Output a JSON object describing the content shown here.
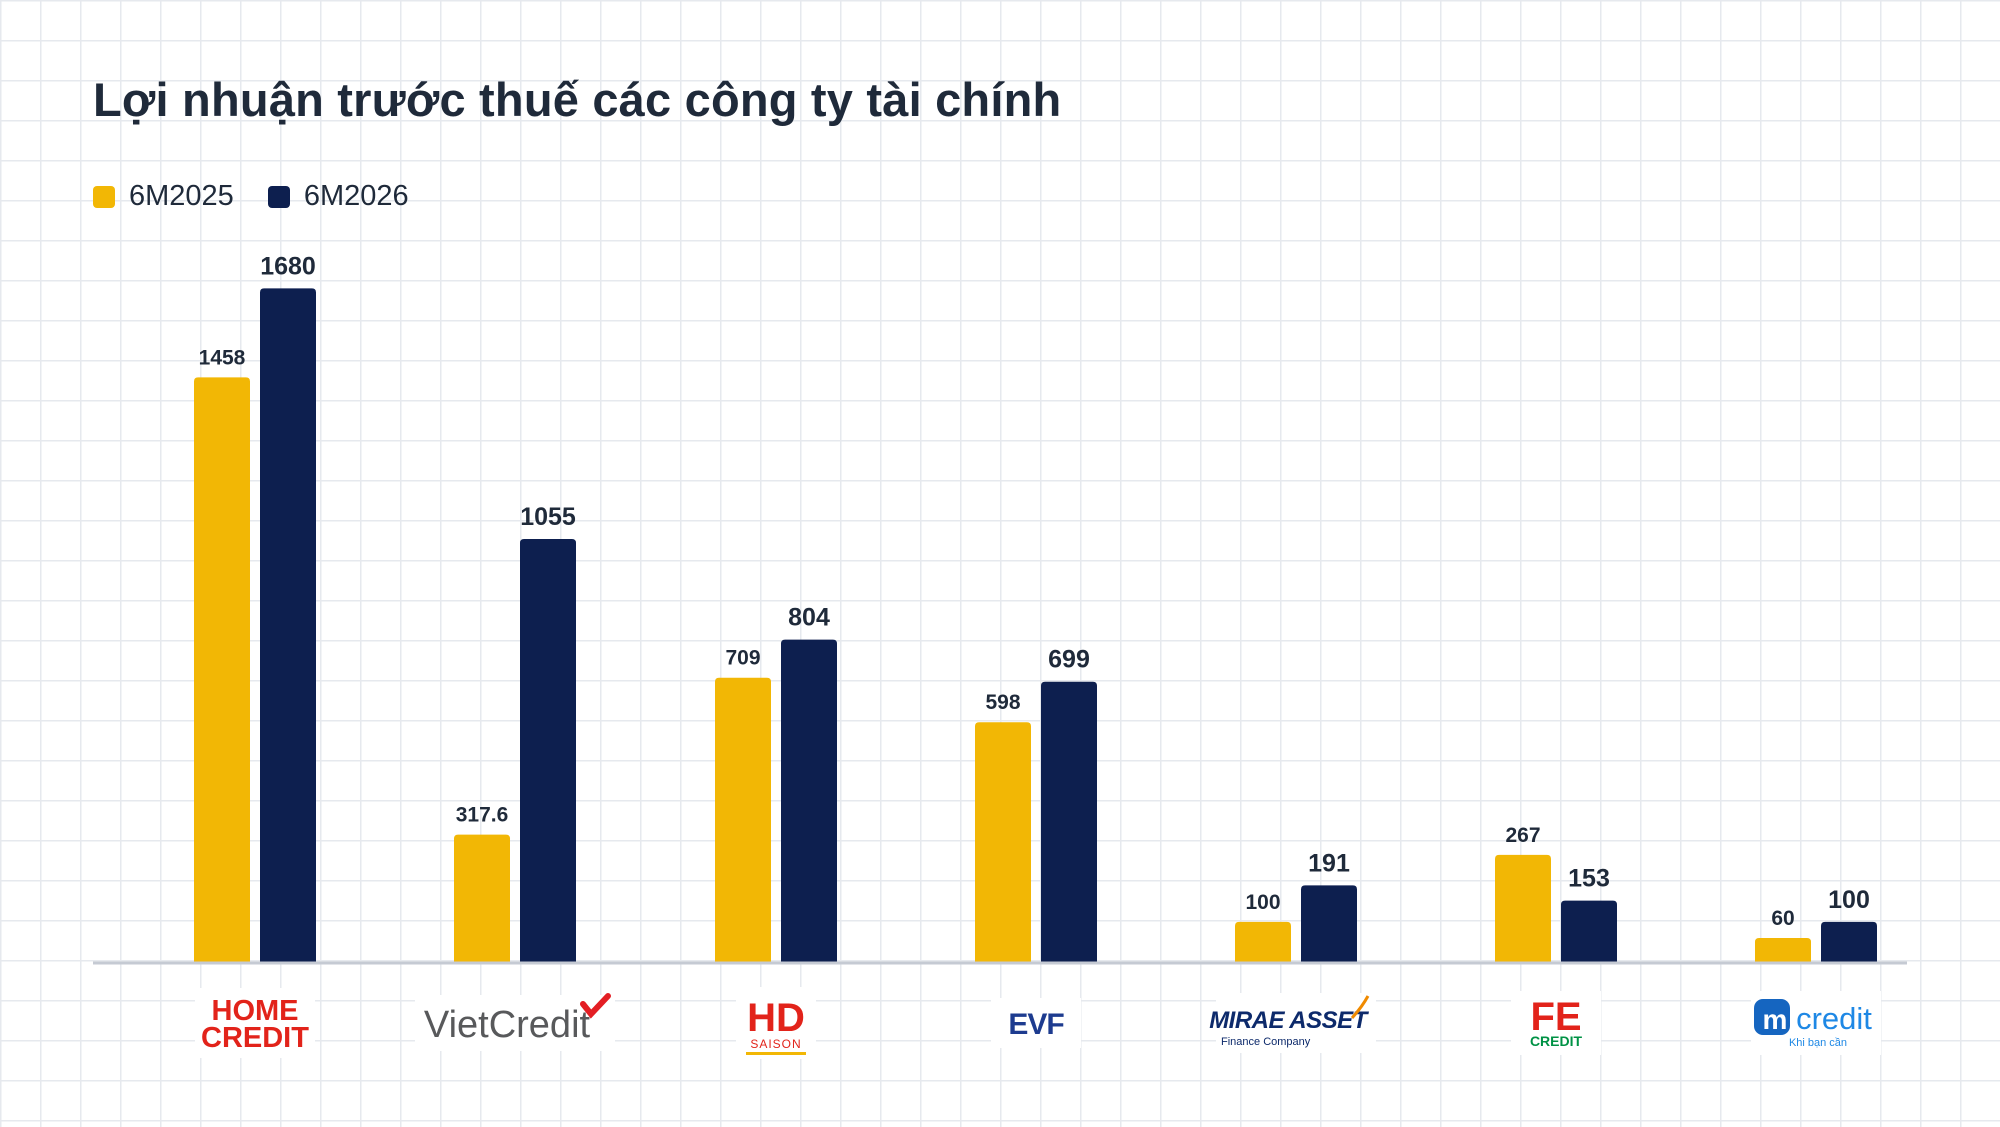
{
  "chart_data": {
    "type": "bar",
    "title": "Lợi nhuận trước thuế các công ty tài chính",
    "categories": [
      "HOME CREDIT",
      "VietCredit",
      "HD SAISON",
      "EVF",
      "MIRAE ASSET Finance Company",
      "FE CREDIT",
      "mcredit Khi bạn cần"
    ],
    "series": [
      {
        "name": "6M2025",
        "values": [
          1458,
          317.6,
          709,
          598,
          100,
          267,
          60
        ],
        "labels": [
          "1458",
          "317.6",
          "709",
          "598",
          "100",
          "267",
          "60"
        ],
        "color": "#f2b705"
      },
      {
        "name": "6M2026",
        "values": [
          1680,
          1055,
          804,
          699,
          191,
          153,
          100
        ],
        "labels": [
          "1680",
          "1055",
          "804",
          "699",
          "191",
          "153",
          "100"
        ],
        "color": "#0d1f4f"
      }
    ],
    "xlabel": "",
    "ylabel": "",
    "ylim": [
      0,
      2000
    ],
    "grid": true,
    "legend_position": "top-left",
    "axis_color": "#c5cad3"
  },
  "logos": [
    {
      "line1": "HOME",
      "line2": "CREDIT",
      "color": "#e2231a"
    },
    {
      "text": "VietCredit",
      "color": "#58595b",
      "accent": "#e31e24"
    },
    {
      "line1": "HD",
      "line2": "SAISON",
      "color": "#e2231a"
    },
    {
      "text": "EVF",
      "color": "#1d3b8f"
    },
    {
      "line1": "MIRAE ASSET",
      "line2": "Finance Company",
      "color": "#0d2a6b",
      "accent": "#f08a00"
    },
    {
      "line1": "FE",
      "line2": "CREDIT",
      "color": "#e2231a",
      "accent": "#009245"
    },
    {
      "mark": "m",
      "text": "credit",
      "line2": "Khi bạn cần",
      "color": "#1e88e5"
    }
  ]
}
